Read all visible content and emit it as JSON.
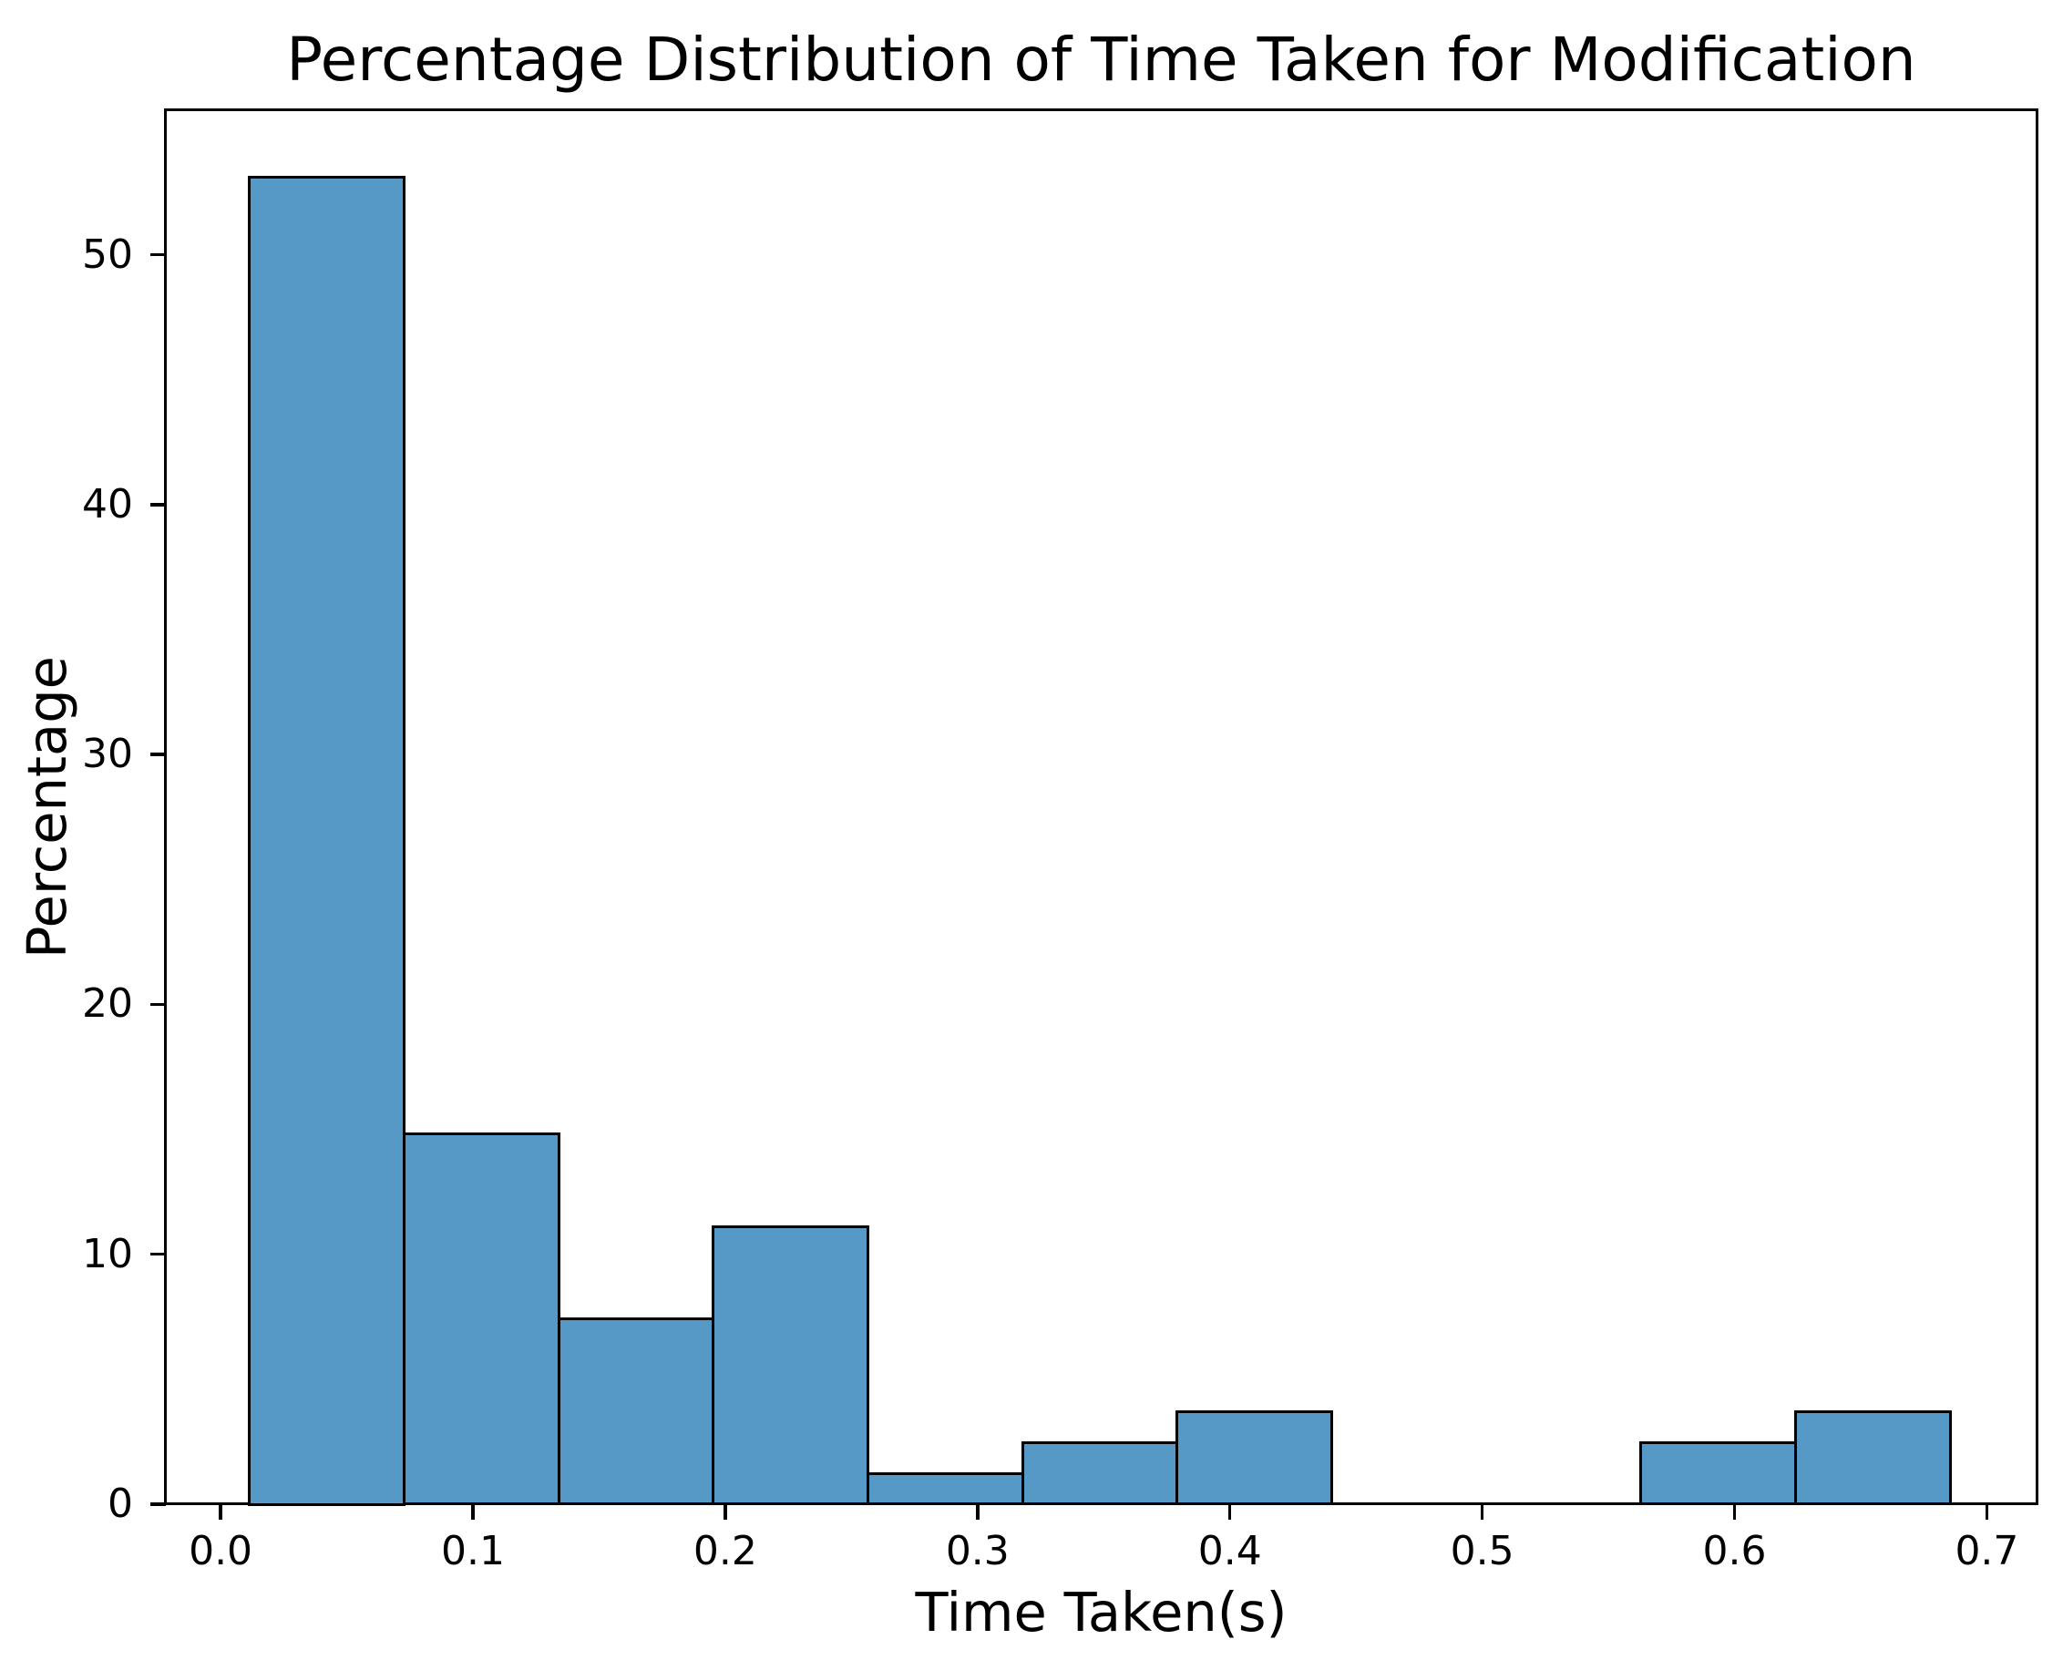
{
  "figure": {
    "title": "Percentage Distribution of Time Taken for Modification",
    "xlabel": "Time Taken(s)",
    "ylabel": "Percentage"
  },
  "chart_data": {
    "type": "bar",
    "subtype": "histogram",
    "title": "Percentage Distribution of Time Taken for Modification",
    "xlabel": "Time Taken(s)",
    "ylabel": "Percentage",
    "bin_edges": [
      0.0115,
      0.0728,
      0.134,
      0.1953,
      0.2566,
      0.3178,
      0.3791,
      0.4404,
      0.5016,
      0.5629,
      0.6242,
      0.6855
    ],
    "values": [
      53.09,
      14.81,
      7.41,
      11.11,
      1.23,
      2.47,
      3.7,
      0,
      0,
      2.47,
      3.7
    ],
    "x_ticks": [
      {
        "label": "0.0",
        "value": 0.0
      },
      {
        "label": "0.1",
        "value": 0.1
      },
      {
        "label": "0.2",
        "value": 0.2
      },
      {
        "label": "0.3",
        "value": 0.3
      },
      {
        "label": "0.4",
        "value": 0.4
      },
      {
        "label": "0.5",
        "value": 0.5
      },
      {
        "label": "0.6",
        "value": 0.6
      },
      {
        "label": "0.7",
        "value": 0.7
      }
    ],
    "y_ticks": [
      {
        "label": "0",
        "value": 0
      },
      {
        "label": "10",
        "value": 10
      },
      {
        "label": "20",
        "value": 20
      },
      {
        "label": "30",
        "value": 30
      },
      {
        "label": "40",
        "value": 40
      },
      {
        "label": "50",
        "value": 50
      }
    ],
    "xlim": [
      -0.0217,
      0.7197
    ],
    "ylim": [
      0,
      55.75
    ],
    "grid": false,
    "legend": null,
    "colors": {
      "bar_fill": "#5799C6",
      "bar_edge": "#000000",
      "axis": "#000000",
      "text": "#000000",
      "background": "#FFFFFF"
    }
  }
}
